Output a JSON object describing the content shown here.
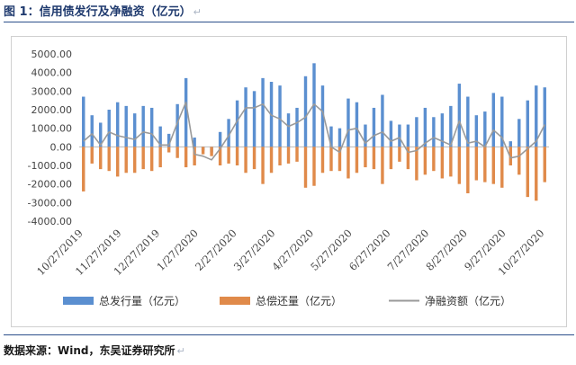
{
  "figure": {
    "title": "图 1：信用债发行及净融资（亿元）",
    "return_mark": "↵",
    "source": "数据来源：Wind，东吴证券研究所",
    "source_return_mark": "↵"
  },
  "chart_data": {
    "type": "bar",
    "title": "",
    "xlabel": "",
    "ylabel": "",
    "ylim": [
      -4000,
      5000
    ],
    "yticks": [
      "5000.00",
      "4000.00",
      "3000.00",
      "2000.00",
      "1000.00",
      "0.00",
      "-1000.00",
      "-2000.00",
      "-3000.00",
      "-4000.00"
    ],
    "xticks": [
      "10/27/2019",
      "11/27/2019",
      "12/27/2019",
      "1/27/2020",
      "2/27/2020",
      "3/27/2020",
      "4/27/2020",
      "5/27/2020",
      "6/27/2020",
      "7/27/2020",
      "8/27/2020",
      "9/27/2020",
      "10/27/2020"
    ],
    "legend_position": "bottom",
    "grid": false,
    "series": [
      {
        "name": "总发行量（亿元）",
        "kind": "bar",
        "color": "#5b8fd0",
        "values": [
          2700,
          1700,
          1300,
          2000,
          2400,
          2200,
          1800,
          2200,
          2100,
          1100,
          700,
          2300,
          3700,
          500,
          -200,
          -300,
          800,
          1500,
          2500,
          3200,
          3000,
          3700,
          3500,
          3300,
          1800,
          2100,
          3800,
          4500,
          3300,
          1100,
          1000,
          2600,
          2400,
          1200,
          2100,
          2800,
          1400,
          1200,
          1200,
          1600,
          2100,
          1600,
          1800,
          2200,
          3400,
          2700,
          1700,
          1900,
          2900,
          2700,
          300,
          1500,
          2500,
          3300,
          3200
        ]
      },
      {
        "name": "总偿还量（亿元）",
        "kind": "bar",
        "color": "#e08a4a",
        "values": [
          -2400,
          -900,
          -1200,
          -1300,
          -1600,
          -1400,
          -1400,
          -1200,
          -1300,
          -1100,
          -300,
          -600,
          -1100,
          -1000,
          -400,
          -500,
          -1000,
          -900,
          -1000,
          -1400,
          -1200,
          -2000,
          -1400,
          -1000,
          -900,
          -800,
          -2200,
          -2100,
          -1400,
          -1300,
          -1300,
          -1700,
          -1400,
          -1100,
          -1200,
          -2000,
          -1200,
          -800,
          -1200,
          -1800,
          -1500,
          -1300,
          -1700,
          -1600,
          -2000,
          -2500,
          -1800,
          -1900,
          -2000,
          -2200,
          -1000,
          -1500,
          -2700,
          -2900,
          -1900
        ]
      },
      {
        "name": "净融资额（亿元）",
        "kind": "line",
        "color": "#9a9a9a",
        "values": [
          300,
          700,
          100,
          800,
          600,
          500,
          400,
          800,
          700,
          100,
          100,
          1300,
          2400,
          -400,
          -500,
          -700,
          -100,
          600,
          1400,
          2100,
          2100,
          2300,
          1700,
          1500,
          1100,
          1300,
          1600,
          2300,
          1900,
          0,
          -300,
          900,
          1000,
          200,
          600,
          800,
          300,
          500,
          -300,
          -200,
          200,
          500,
          300,
          100,
          1400,
          200,
          300,
          0,
          900,
          500,
          -600,
          -500,
          -100,
          300,
          1200
        ]
      }
    ]
  }
}
